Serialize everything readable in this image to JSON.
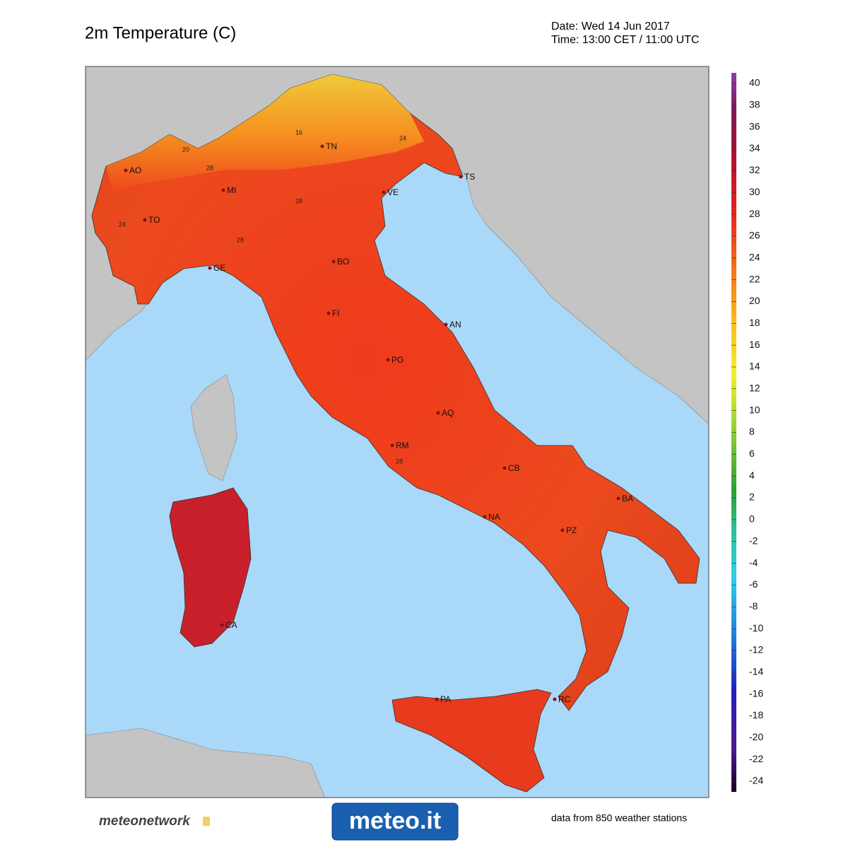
{
  "header": {
    "title": "2m Temperature (C)",
    "date": "Date: Wed 14 Jun 2017",
    "time": "Time: 13:00 CET / 11:00 UTC"
  },
  "cities": [
    "AO",
    "TO",
    "MI",
    "TN",
    "VE",
    "TS",
    "GE",
    "BO",
    "FI",
    "AN",
    "PG",
    "AQ",
    "RM",
    "CB",
    "NA",
    "BA",
    "PZ",
    "CA",
    "PA",
    "RC"
  ],
  "contour_labels": [
    "20",
    "16",
    "24",
    "28",
    "28",
    "24",
    "28",
    "28"
  ],
  "colorbar": {
    "ticks": [
      40,
      38,
      36,
      34,
      32,
      30,
      28,
      26,
      24,
      22,
      20,
      18,
      16,
      14,
      12,
      10,
      8,
      6,
      4,
      2,
      0,
      -2,
      -4,
      -6,
      -8,
      -10,
      -12,
      -14,
      -16,
      -18,
      -20,
      -22,
      -24
    ]
  },
  "footer": {
    "left_logo": "meteonetwork",
    "center_logo": "meteo.it",
    "note": "data from 850 weather stations"
  }
}
